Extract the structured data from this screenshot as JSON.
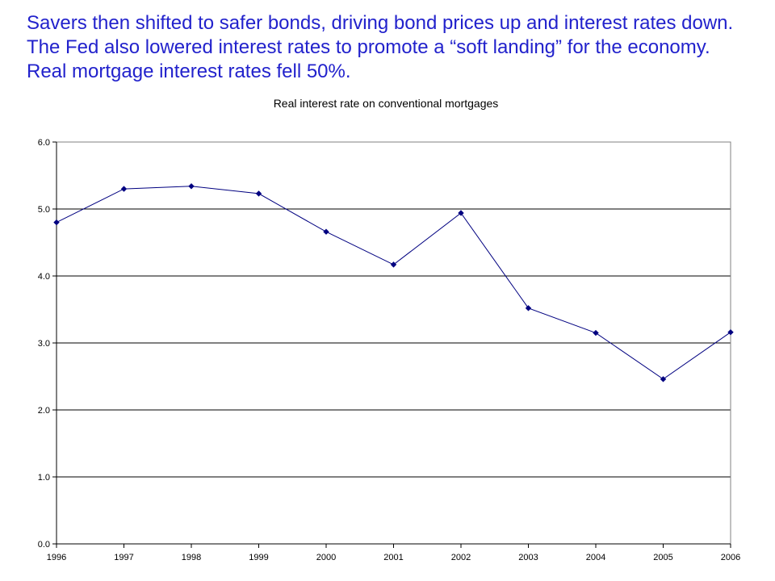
{
  "slide": {
    "text": "Savers then shifted to safer bonds, driving bond prices up and interest rates down. The Fed also lowered interest rates to promote a “soft landing” for the economy. Real mortgage interest rates fell 50%."
  },
  "colors": {
    "text_accent": "#2222cc",
    "series_line": "#000080",
    "grid": "#000000",
    "plot_border": "#808080"
  },
  "chart_data": {
    "type": "line",
    "title": "Real interest rate on conventional mortgages",
    "xlabel": "",
    "ylabel": "",
    "categories": [
      "1996",
      "1997",
      "1998",
      "1999",
      "2000",
      "2001",
      "2002",
      "2003",
      "2004",
      "2005",
      "2006"
    ],
    "series": [
      {
        "values": [
          4.8,
          5.3,
          5.34,
          5.23,
          4.66,
          4.17,
          4.94,
          3.52,
          3.15,
          2.46,
          3.16
        ],
        "marker": "diamond"
      }
    ],
    "ylim": [
      0,
      6
    ],
    "yticks": [
      "0.0",
      "1.0",
      "2.0",
      "3.0",
      "4.0",
      "5.0",
      "6.0"
    ],
    "grid": "horizontal",
    "legend": "none"
  }
}
